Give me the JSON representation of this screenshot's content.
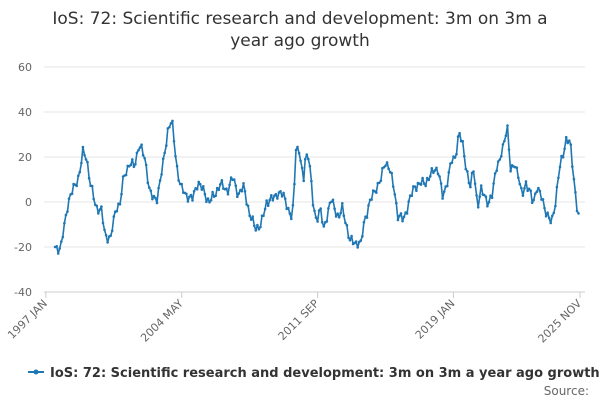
{
  "chart_data": {
    "type": "line",
    "title_lines": [
      "IoS: 72: Scientific research and development: 3m on 3m a",
      "year ago growth"
    ],
    "series_name": "IoS: 72: Scientific research and development: 3m on 3m a year ago growth",
    "source_label": "Source:",
    "x_tick_labels": [
      "1997 JAN",
      "2004 MAY",
      "2011 SEP",
      "2019 JAN",
      "2025 NOV"
    ],
    "x_tick_times": [
      1997.0,
      2004.333,
      2011.667,
      2019.0,
      2025.833
    ],
    "x_range": [
      1996.9,
      2026.1
    ],
    "y_ticks": [
      -40,
      -20,
      0,
      20,
      40,
      60
    ],
    "ylim": [
      -40,
      60
    ],
    "line_color": "#1f77b4",
    "x_start": 1997.5,
    "x_step_months": 1,
    "keypoints": [
      [
        1997.5,
        -20
      ],
      [
        1997.8,
        -21
      ],
      [
        1998.2,
        0
      ],
      [
        1998.8,
        12
      ],
      [
        1999.0,
        22
      ],
      [
        1999.2,
        20
      ],
      [
        1999.4,
        8
      ],
      [
        1999.7,
        -2
      ],
      [
        2000.0,
        -4
      ],
      [
        2000.2,
        -15
      ],
      [
        2000.5,
        -16
      ],
      [
        2000.8,
        -2
      ],
      [
        2001.0,
        -1
      ],
      [
        2001.2,
        11
      ],
      [
        2001.5,
        17
      ],
      [
        2001.8,
        16
      ],
      [
        2002.0,
        25
      ],
      [
        2002.2,
        23
      ],
      [
        2002.4,
        17
      ],
      [
        2002.6,
        5
      ],
      [
        2002.8,
        1
      ],
      [
        2003.0,
        2
      ],
      [
        2003.3,
        15
      ],
      [
        2003.6,
        33
      ],
      [
        2003.8,
        36
      ],
      [
        2004.1,
        14
      ],
      [
        2004.3,
        6
      ],
      [
        2004.6,
        3
      ],
      [
        2004.9,
        1
      ],
      [
        2005.2,
        9
      ],
      [
        2005.5,
        5
      ],
      [
        2005.8,
        0
      ],
      [
        2006.1,
        3
      ],
      [
        2006.4,
        8
      ],
      [
        2006.8,
        5
      ],
      [
        2007.1,
        11
      ],
      [
        2007.4,
        3
      ],
      [
        2007.7,
        7
      ],
      [
        2008.0,
        -6
      ],
      [
        2008.3,
        -11
      ],
      [
        2008.6,
        -11
      ],
      [
        2008.9,
        0
      ],
      [
        2009.2,
        1
      ],
      [
        2009.5,
        4
      ],
      [
        2009.8,
        3
      ],
      [
        2009.95,
        1
      ],
      [
        2010.1,
        -4
      ],
      [
        2010.3,
        -8
      ],
      [
        2010.4,
        5
      ],
      [
        2010.5,
        25
      ],
      [
        2010.7,
        22
      ],
      [
        2010.9,
        8
      ],
      [
        2011.0,
        20
      ],
      [
        2011.2,
        21
      ],
      [
        2011.4,
        0
      ],
      [
        2011.6,
        -8
      ],
      [
        2011.8,
        -3
      ],
      [
        2012.0,
        -12
      ],
      [
        2012.2,
        -5
      ],
      [
        2012.4,
        1
      ],
      [
        2012.6,
        -3
      ],
      [
        2012.8,
        -7
      ],
      [
        2013.0,
        -3
      ],
      [
        2013.2,
        -9
      ],
      [
        2013.4,
        -17
      ],
      [
        2013.6,
        -18
      ],
      [
        2013.9,
        -18
      ],
      [
        2014.0,
        -19
      ],
      [
        2014.2,
        -8
      ],
      [
        2014.5,
        0
      ],
      [
        2014.8,
        6
      ],
      [
        2015.1,
        10
      ],
      [
        2015.3,
        18
      ],
      [
        2015.5,
        16
      ],
      [
        2015.8,
        6
      ],
      [
        2016.0,
        -6
      ],
      [
        2016.3,
        -8
      ],
      [
        2016.6,
        0
      ],
      [
        2016.9,
        7
      ],
      [
        2017.2,
        8
      ],
      [
        2017.5,
        9
      ],
      [
        2017.8,
        12
      ],
      [
        2018.0,
        15
      ],
      [
        2018.2,
        14
      ],
      [
        2018.4,
        2
      ],
      [
        2018.6,
        7
      ],
      [
        2018.9,
        18
      ],
      [
        2019.1,
        20
      ],
      [
        2019.3,
        31
      ],
      [
        2019.5,
        25
      ],
      [
        2019.7,
        15
      ],
      [
        2019.9,
        6
      ],
      [
        2020.1,
        15
      ],
      [
        2020.3,
        -2
      ],
      [
        2020.5,
        5
      ],
      [
        2020.7,
        3
      ],
      [
        2020.9,
        -1
      ],
      [
        2021.1,
        3
      ],
      [
        2021.3,
        16
      ],
      [
        2021.5,
        18
      ],
      [
        2021.7,
        25
      ],
      [
        2021.9,
        35
      ],
      [
        2022.1,
        12
      ],
      [
        2022.3,
        18
      ],
      [
        2022.5,
        12
      ],
      [
        2022.7,
        2
      ],
      [
        2022.9,
        9
      ],
      [
        2023.1,
        5
      ],
      [
        2023.3,
        -1
      ],
      [
        2023.5,
        7
      ],
      [
        2023.7,
        3
      ],
      [
        2023.9,
        -2
      ],
      [
        2024.1,
        -6
      ],
      [
        2024.3,
        -10
      ],
      [
        2024.5,
        0
      ],
      [
        2024.7,
        14
      ],
      [
        2024.9,
        20
      ],
      [
        2025.1,
        29
      ],
      [
        2025.3,
        26
      ],
      [
        2025.5,
        10
      ],
      [
        2025.7,
        -4
      ],
      [
        2025.833,
        -9
      ]
    ]
  }
}
